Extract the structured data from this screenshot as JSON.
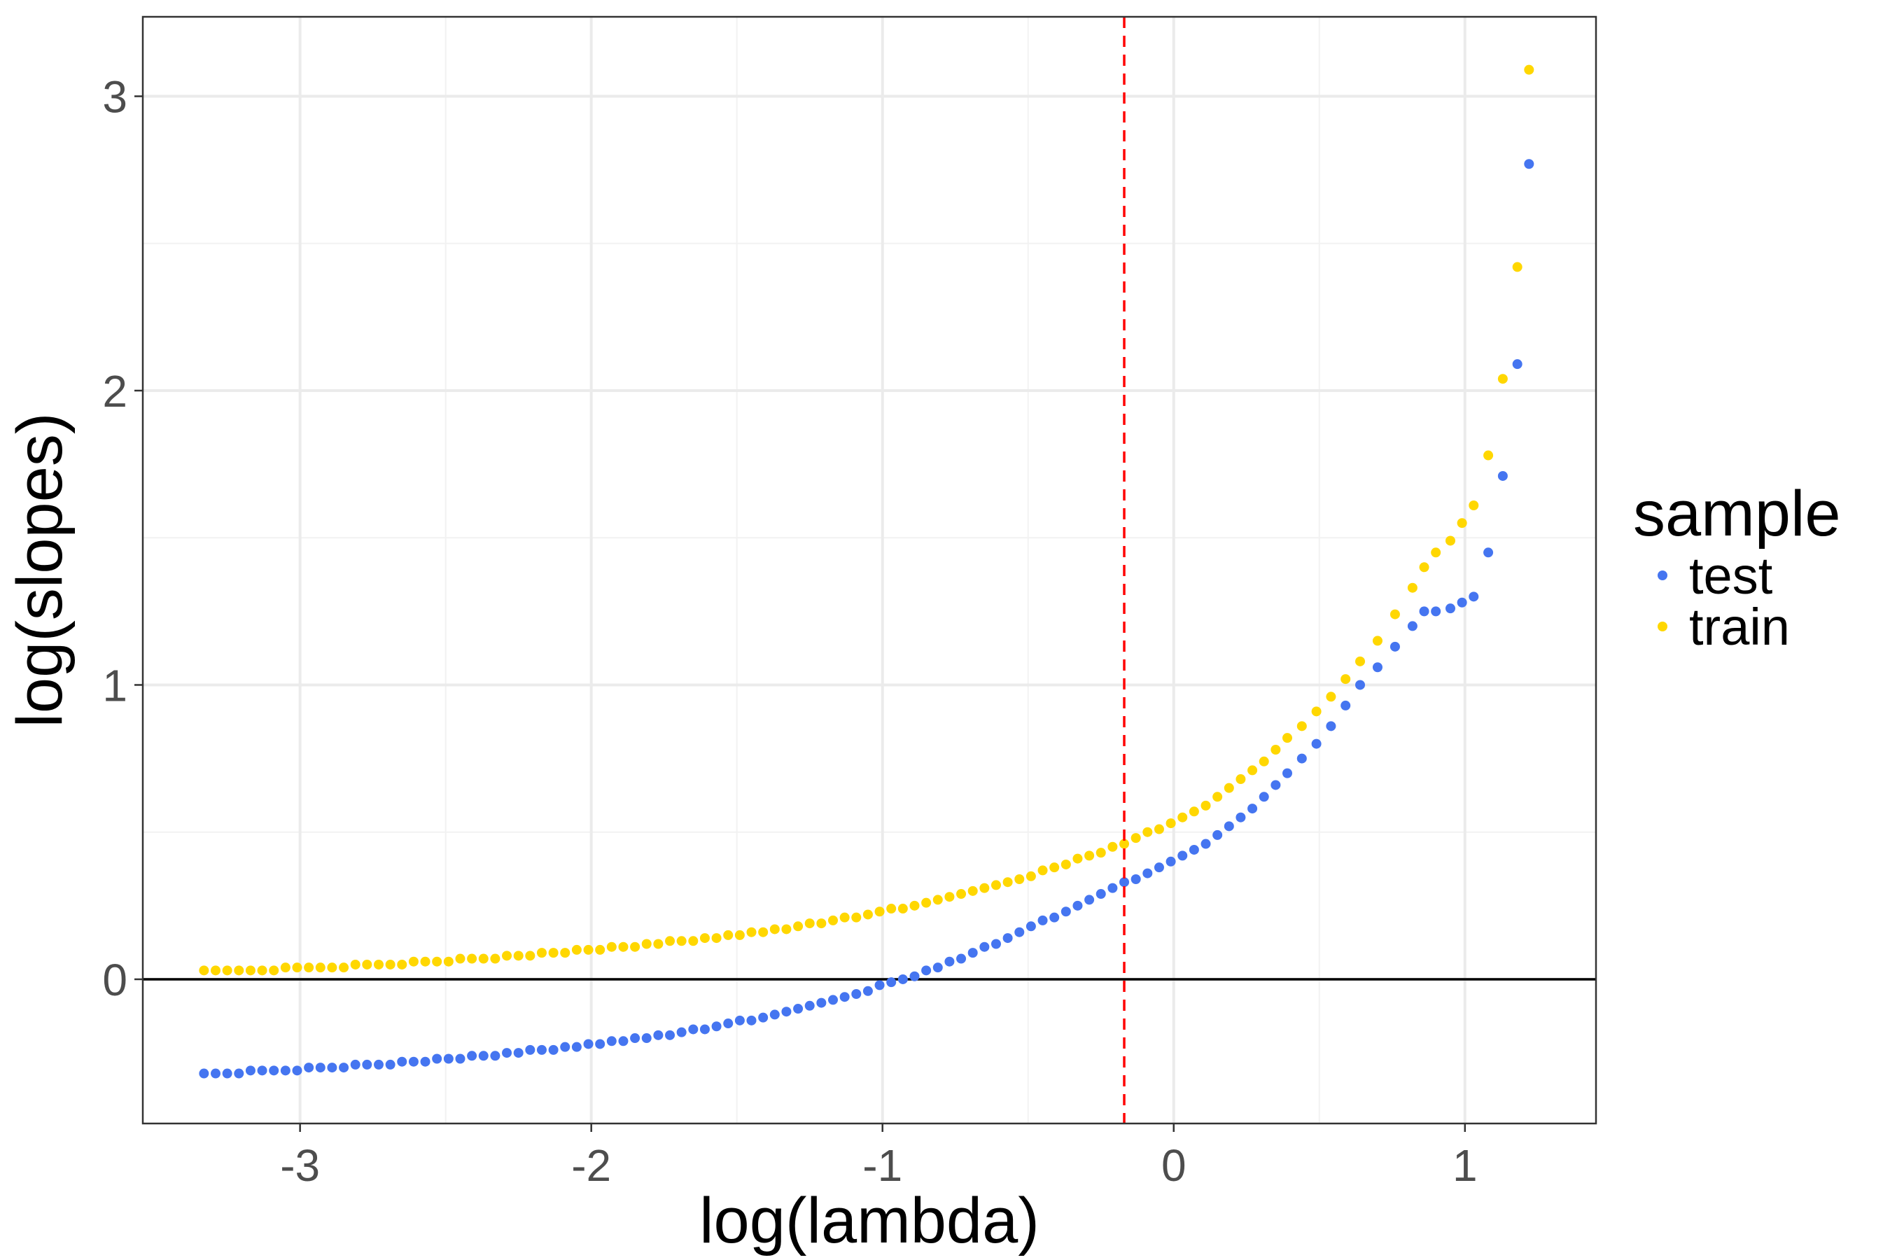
{
  "chart_data": {
    "type": "scatter",
    "title": "",
    "xlabel": "log(lambda)",
    "ylabel": "log(slopes)",
    "xlim": [
      -3.54,
      1.45
    ],
    "ylim": [
      -0.49,
      3.27
    ],
    "x_ticks": [
      -3,
      -2,
      -1,
      0,
      1
    ],
    "x_tick_labels": [
      "-3",
      "-2",
      "-1",
      "0",
      "1"
    ],
    "y_ticks": [
      0,
      1,
      2,
      3
    ],
    "y_tick_labels": [
      "0",
      "1",
      "2",
      "3"
    ],
    "x_minor_ticks": [
      -2.5,
      -1.5,
      -0.5,
      0.5
    ],
    "y_minor_ticks": [
      0.5,
      1.5,
      2.5
    ],
    "grid": true,
    "hline": {
      "y": 0,
      "color": "#000000"
    },
    "vline": {
      "x": -0.17,
      "color": "#ff0000",
      "style": "dashed"
    },
    "legend": {
      "title": "sample",
      "position": "right"
    },
    "series": [
      {
        "name": "test",
        "color": "#4575f0",
        "x": [
          -3.33,
          -3.29,
          -3.25,
          -3.21,
          -3.17,
          -3.13,
          -3.09,
          -3.05,
          -3.01,
          -2.97,
          -2.93,
          -2.89,
          -2.85,
          -2.81,
          -2.77,
          -2.73,
          -2.69,
          -2.65,
          -2.61,
          -2.57,
          -2.53,
          -2.49,
          -2.45,
          -2.41,
          -2.37,
          -2.33,
          -2.29,
          -2.25,
          -2.21,
          -2.17,
          -2.13,
          -2.09,
          -2.05,
          -2.01,
          -1.97,
          -1.93,
          -1.89,
          -1.85,
          -1.81,
          -1.77,
          -1.73,
          -1.69,
          -1.65,
          -1.61,
          -1.57,
          -1.53,
          -1.49,
          -1.45,
          -1.41,
          -1.37,
          -1.33,
          -1.29,
          -1.25,
          -1.21,
          -1.17,
          -1.13,
          -1.09,
          -1.05,
          -1.01,
          -0.97,
          -0.93,
          -0.89,
          -0.85,
          -0.81,
          -0.77,
          -0.73,
          -0.69,
          -0.65,
          -0.61,
          -0.57,
          -0.53,
          -0.49,
          -0.45,
          -0.41,
          -0.37,
          -0.33,
          -0.29,
          -0.25,
          -0.21,
          -0.17,
          -0.13,
          -0.09,
          -0.05,
          -0.01,
          0.03,
          0.07,
          0.11,
          0.15,
          0.19,
          0.23,
          0.27,
          0.31,
          0.35,
          0.39,
          0.44,
          0.49,
          0.54,
          0.59,
          0.64,
          0.7,
          0.76,
          0.82,
          0.86,
          0.9,
          0.95,
          0.99,
          1.03,
          1.08,
          1.13,
          1.18,
          1.22
        ],
        "y": [
          -0.32,
          -0.32,
          -0.32,
          -0.32,
          -0.31,
          -0.31,
          -0.31,
          -0.31,
          -0.31,
          -0.3,
          -0.3,
          -0.3,
          -0.3,
          -0.29,
          -0.29,
          -0.29,
          -0.29,
          -0.28,
          -0.28,
          -0.28,
          -0.27,
          -0.27,
          -0.27,
          -0.26,
          -0.26,
          -0.26,
          -0.25,
          -0.25,
          -0.24,
          -0.24,
          -0.24,
          -0.23,
          -0.23,
          -0.22,
          -0.22,
          -0.21,
          -0.21,
          -0.2,
          -0.2,
          -0.19,
          -0.19,
          -0.18,
          -0.17,
          -0.17,
          -0.16,
          -0.15,
          -0.14,
          -0.14,
          -0.13,
          -0.12,
          -0.11,
          -0.1,
          -0.09,
          -0.08,
          -0.07,
          -0.06,
          -0.05,
          -0.04,
          -0.02,
          -0.01,
          0.0,
          0.01,
          0.03,
          0.04,
          0.06,
          0.07,
          0.09,
          0.11,
          0.12,
          0.14,
          0.16,
          0.18,
          0.2,
          0.21,
          0.23,
          0.25,
          0.27,
          0.29,
          0.31,
          0.33,
          0.34,
          0.36,
          0.38,
          0.4,
          0.42,
          0.44,
          0.46,
          0.49,
          0.52,
          0.55,
          0.58,
          0.62,
          0.66,
          0.7,
          0.75,
          0.8,
          0.86,
          0.93,
          1.0,
          1.06,
          1.13,
          1.2,
          1.25,
          1.25,
          1.26,
          1.28,
          1.3,
          1.45,
          1.71,
          2.09,
          2.77
        ]
      },
      {
        "name": "train",
        "color": "#ffd700",
        "x": [
          -3.33,
          -3.29,
          -3.25,
          -3.21,
          -3.17,
          -3.13,
          -3.09,
          -3.05,
          -3.01,
          -2.97,
          -2.93,
          -2.89,
          -2.85,
          -2.81,
          -2.77,
          -2.73,
          -2.69,
          -2.65,
          -2.61,
          -2.57,
          -2.53,
          -2.49,
          -2.45,
          -2.41,
          -2.37,
          -2.33,
          -2.29,
          -2.25,
          -2.21,
          -2.17,
          -2.13,
          -2.09,
          -2.05,
          -2.01,
          -1.97,
          -1.93,
          -1.89,
          -1.85,
          -1.81,
          -1.77,
          -1.73,
          -1.69,
          -1.65,
          -1.61,
          -1.57,
          -1.53,
          -1.49,
          -1.45,
          -1.41,
          -1.37,
          -1.33,
          -1.29,
          -1.25,
          -1.21,
          -1.17,
          -1.13,
          -1.09,
          -1.05,
          -1.01,
          -0.97,
          -0.93,
          -0.89,
          -0.85,
          -0.81,
          -0.77,
          -0.73,
          -0.69,
          -0.65,
          -0.61,
          -0.57,
          -0.53,
          -0.49,
          -0.45,
          -0.41,
          -0.37,
          -0.33,
          -0.29,
          -0.25,
          -0.21,
          -0.17,
          -0.13,
          -0.09,
          -0.05,
          -0.01,
          0.03,
          0.07,
          0.11,
          0.15,
          0.19,
          0.23,
          0.27,
          0.31,
          0.35,
          0.39,
          0.44,
          0.49,
          0.54,
          0.59,
          0.64,
          0.7,
          0.76,
          0.82,
          0.86,
          0.9,
          0.95,
          0.99,
          1.03,
          1.08,
          1.13,
          1.18,
          1.22
        ],
        "y": [
          0.03,
          0.03,
          0.03,
          0.03,
          0.03,
          0.03,
          0.03,
          0.04,
          0.04,
          0.04,
          0.04,
          0.04,
          0.04,
          0.05,
          0.05,
          0.05,
          0.05,
          0.05,
          0.06,
          0.06,
          0.06,
          0.06,
          0.07,
          0.07,
          0.07,
          0.07,
          0.08,
          0.08,
          0.08,
          0.09,
          0.09,
          0.09,
          0.1,
          0.1,
          0.1,
          0.11,
          0.11,
          0.11,
          0.12,
          0.12,
          0.13,
          0.13,
          0.13,
          0.14,
          0.14,
          0.15,
          0.15,
          0.16,
          0.16,
          0.17,
          0.17,
          0.18,
          0.19,
          0.19,
          0.2,
          0.21,
          0.21,
          0.22,
          0.23,
          0.24,
          0.24,
          0.25,
          0.26,
          0.27,
          0.28,
          0.29,
          0.3,
          0.31,
          0.32,
          0.33,
          0.34,
          0.35,
          0.37,
          0.38,
          0.39,
          0.41,
          0.42,
          0.43,
          0.45,
          0.46,
          0.48,
          0.5,
          0.51,
          0.53,
          0.55,
          0.57,
          0.59,
          0.62,
          0.65,
          0.68,
          0.71,
          0.74,
          0.78,
          0.82,
          0.86,
          0.91,
          0.96,
          1.02,
          1.08,
          1.15,
          1.24,
          1.33,
          1.4,
          1.45,
          1.49,
          1.55,
          1.61,
          1.78,
          2.04,
          2.42,
          3.09
        ]
      }
    ]
  }
}
